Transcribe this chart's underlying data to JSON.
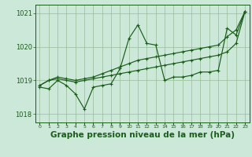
{
  "x": [
    0,
    1,
    2,
    3,
    4,
    5,
    6,
    7,
    8,
    9,
    10,
    11,
    12,
    13,
    14,
    15,
    16,
    17,
    18,
    19,
    20,
    21,
    22,
    23
  ],
  "series1": [
    1018.8,
    1018.75,
    1019.0,
    1018.85,
    1018.6,
    1018.15,
    1018.8,
    1018.85,
    1018.9,
    1019.35,
    1020.25,
    1020.65,
    1020.1,
    1020.05,
    1019.0,
    1019.1,
    1019.1,
    1019.15,
    1019.25,
    1019.25,
    1019.3,
    1020.55,
    1020.35,
    1021.05
  ],
  "series2": [
    1018.85,
    1019.0,
    1019.1,
    1019.05,
    1019.0,
    1019.05,
    1019.1,
    1019.2,
    1019.3,
    1019.4,
    1019.5,
    1019.6,
    1019.65,
    1019.7,
    1019.75,
    1019.8,
    1019.85,
    1019.9,
    1019.95,
    1020.0,
    1020.05,
    1020.3,
    1020.5,
    1021.05
  ],
  "series3": [
    1018.85,
    1019.0,
    1019.05,
    1019.0,
    1018.95,
    1019.0,
    1019.05,
    1019.1,
    1019.15,
    1019.2,
    1019.25,
    1019.3,
    1019.35,
    1019.4,
    1019.45,
    1019.5,
    1019.55,
    1019.6,
    1019.65,
    1019.7,
    1019.75,
    1019.85,
    1020.1,
    1021.05
  ],
  "line_color": "#1a5c1a",
  "bg_color": "#cce8d8",
  "grid_color": "#99bb99",
  "xlabel": "Graphe pression niveau de la mer (hPa)",
  "ylim": [
    1017.75,
    1021.25
  ],
  "yticks": [
    1018,
    1019,
    1020,
    1021
  ],
  "label_fontsize": 7.5
}
